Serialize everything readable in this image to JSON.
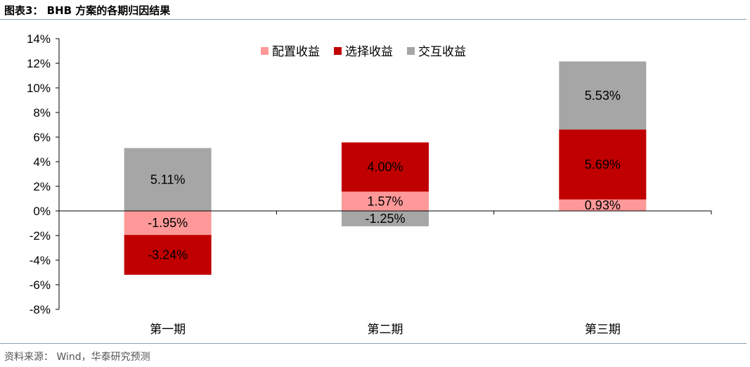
{
  "figure": {
    "title": "图表3： BHB 方案的各期归因结果",
    "source": "资料来源： Wind，华泰研究预测"
  },
  "chart_data": {
    "type": "bar",
    "stacked": true,
    "title": "",
    "xlabel": "",
    "ylabel": "",
    "categories": [
      "第一期",
      "第二期",
      "第三期"
    ],
    "series": [
      {
        "name": "配置收益",
        "color": "#ff9999",
        "values": [
          -1.95,
          1.57,
          0.93
        ]
      },
      {
        "name": "选择收益",
        "color": "#c00000",
        "values": [
          -3.24,
          4.0,
          5.69
        ]
      },
      {
        "name": "交互收益",
        "color": "#a6a6a6",
        "values": [
          5.11,
          -1.25,
          5.53
        ]
      }
    ],
    "data_labels": [
      [
        "-1.95%",
        "1.57%",
        "0.93%"
      ],
      [
        "-3.24%",
        "4.00%",
        "5.69%"
      ],
      [
        "5.11%",
        "-1.25%",
        "5.53%"
      ]
    ],
    "ylim": [
      -8,
      14
    ],
    "yticks": [
      -8,
      -6,
      -4,
      -2,
      0,
      2,
      4,
      6,
      8,
      10,
      12,
      14
    ],
    "ytick_labels": [
      "-8%",
      "-6%",
      "-4%",
      "-2%",
      "0%",
      "2%",
      "4%",
      "6%",
      "8%",
      "10%",
      "12%",
      "14%"
    ],
    "legend_position": "top-center",
    "grid": false
  }
}
